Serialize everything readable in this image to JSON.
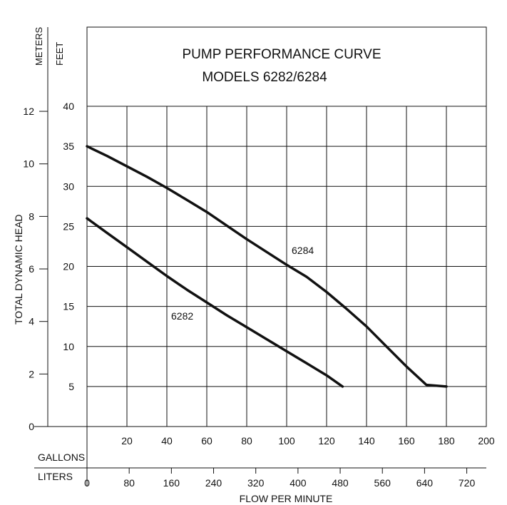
{
  "chart_data": {
    "type": "line",
    "title": [
      "PUMP PERFORMANCE CURVE",
      "MODELS 6282/6284"
    ],
    "ylabel": "TOTAL DYNAMIC HEAD",
    "xlabel": "FLOW PER MINUTE",
    "y_feet_unit": "FEET",
    "y_meters_unit": "METERS",
    "x_gallons_unit": "GALLONS",
    "x_liters_unit": "LITERS",
    "x_gallons_ticks": [
      "20",
      "40",
      "60",
      "80",
      "100",
      "120",
      "140",
      "160",
      "180",
      "200"
    ],
    "x_liters_ticks": [
      "0",
      "80",
      "160",
      "240",
      "320",
      "400",
      "480",
      "560",
      "640",
      "720"
    ],
    "y_feet_ticks": [
      "5",
      "10",
      "15",
      "20",
      "25",
      "30",
      "35",
      "40"
    ],
    "y_meters_ticks": [
      "0",
      "2",
      "4",
      "6",
      "8",
      "10",
      "12"
    ],
    "xlim": [
      0,
      200
    ],
    "ylim": [
      0,
      40
    ],
    "grid": true,
    "series": [
      {
        "name": "6284",
        "x": [
          0,
          10,
          20,
          30,
          40,
          50,
          60,
          70,
          80,
          90,
          100,
          110,
          120,
          130,
          140,
          150,
          160,
          170,
          180
        ],
        "y": [
          35,
          33.8,
          32.5,
          31.2,
          29.8,
          28.3,
          26.8,
          25.1,
          23.4,
          21.8,
          20.2,
          18.7,
          16.8,
          14.7,
          12.5,
          10,
          7.5,
          5.2,
          5
        ]
      },
      {
        "name": "6282",
        "x": [
          0,
          10,
          20,
          30,
          40,
          50,
          60,
          70,
          80,
          90,
          100,
          110,
          120,
          128
        ],
        "y": [
          26,
          24.2,
          22.4,
          20.6,
          18.8,
          17.1,
          15.5,
          13.9,
          12.4,
          10.9,
          9.4,
          7.9,
          6.4,
          5
        ]
      }
    ]
  }
}
